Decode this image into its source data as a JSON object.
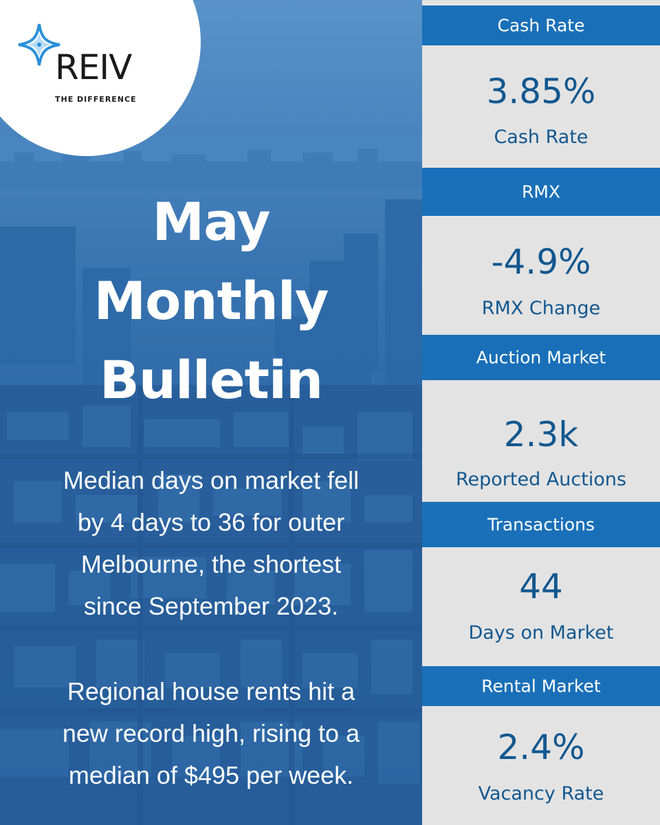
{
  "brand": {
    "name": "REIV",
    "tagline": "THE DIFFERENCE",
    "accent_color": "#1a70b8",
    "value_color": "#12578f"
  },
  "headline": {
    "line1": "May",
    "line2": "Monthly",
    "line3": "Bulletin"
  },
  "paragraphs": [
    {
      "lines": [
        "Median days on market fell",
        "by 4 days to 36 for outer",
        "Melbourne, the shortest",
        "since September 2023."
      ]
    },
    {
      "lines": [
        "Regional house rents hit a",
        "new record high, rising to a",
        "median of $495 per week."
      ]
    }
  ],
  "stats": [
    {
      "heading": "Cash Rate",
      "value": "3.85%",
      "label": "Cash Rate"
    },
    {
      "heading": "RMX",
      "value": "-4.9%",
      "label": "RMX Change"
    },
    {
      "heading": "Auction Market",
      "value": "2.3k",
      "label": "Reported Auctions"
    },
    {
      "heading": "Transactions",
      "value": "44",
      "label": "Days on Market"
    },
    {
      "heading": "Rental Market",
      "value": "2.4%",
      "label": "Vacancy Rate"
    }
  ]
}
